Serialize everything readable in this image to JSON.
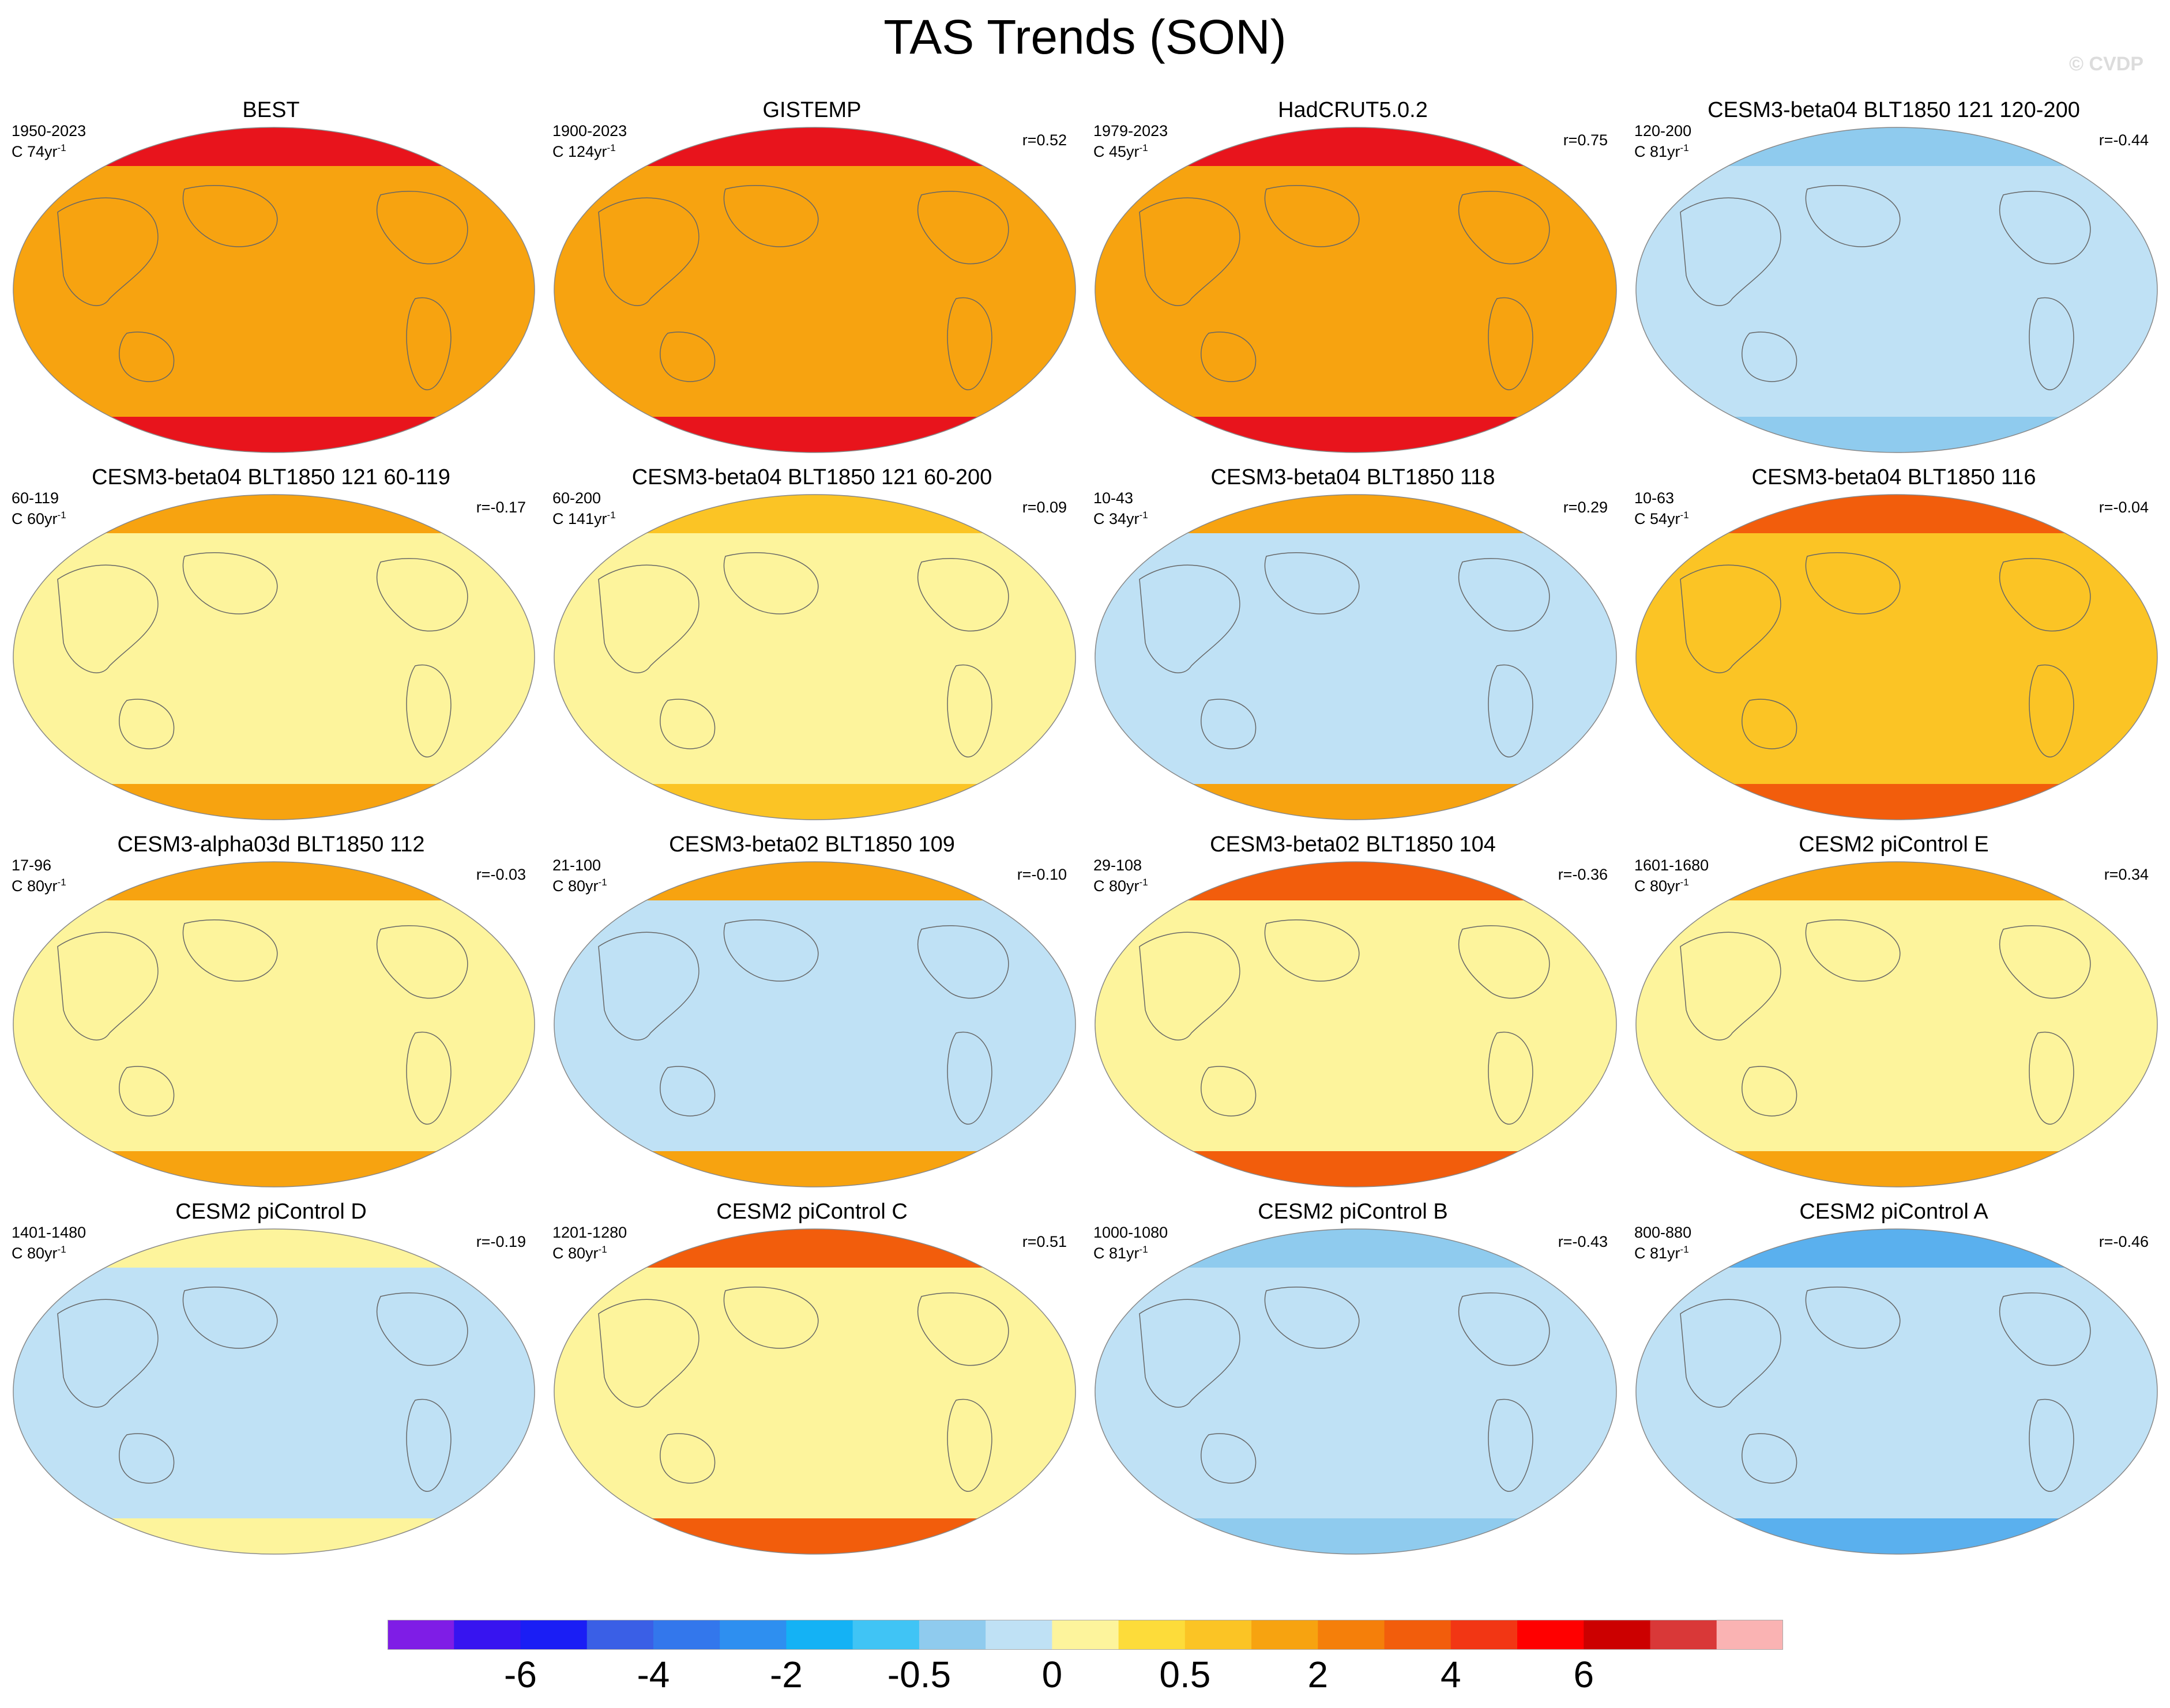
{
  "page": {
    "title": "TAS Trends (SON)",
    "watermark": "© CVDP"
  },
  "chart_data": {
    "type": "heatmap",
    "title": "TAS Trends (SON)",
    "projection": "Robinson global maps (spatial trend fields)",
    "panels": [
      {
        "title": "BEST",
        "period": "1950-2023",
        "length_prefix": "C ",
        "length_value": "74yr",
        "length_exp": "-1",
        "corr": "",
        "tone": "#f7a310",
        "poles": "#e8141c"
      },
      {
        "title": "GISTEMP",
        "period": "1900-2023",
        "length_prefix": "C ",
        "length_value": "124yr",
        "length_exp": "-1",
        "corr": "r=0.52",
        "tone": "#f7a310",
        "poles": "#e8141c"
      },
      {
        "title": "HadCRUT5.0.2",
        "period": "1979-2023",
        "length_prefix": "C ",
        "length_value": "45yr",
        "length_exp": "-1",
        "corr": "r=0.75",
        "tone": "#f7a310",
        "poles": "#e8141c"
      },
      {
        "title": "CESM3-beta04 BLT1850 121 120-200",
        "period": "120-200",
        "length_prefix": "C ",
        "length_value": "81yr",
        "length_exp": "-1",
        "corr": "r=-0.44",
        "tone": "#bfe1f5",
        "poles": "#8fcbee"
      },
      {
        "title": "CESM3-beta04 BLT1850 121 60-119",
        "period": "60-119",
        "length_prefix": "C ",
        "length_value": "60yr",
        "length_exp": "-1",
        "corr": "r=-0.17",
        "tone": "#fdf49c",
        "poles": "#f7a310"
      },
      {
        "title": "CESM3-beta04 BLT1850 121 60-200",
        "period": "60-200",
        "length_prefix": "C ",
        "length_value": "141yr",
        "length_exp": "-1",
        "corr": "r=0.09",
        "tone": "#fdf49c",
        "poles": "#fbc425"
      },
      {
        "title": "CESM3-beta04 BLT1850 118",
        "period": "10-43",
        "length_prefix": "C ",
        "length_value": "34yr",
        "length_exp": "-1",
        "corr": "r=0.29",
        "tone": "#bfe1f5",
        "poles": "#f7a310"
      },
      {
        "title": "CESM3-beta04 BLT1850 116",
        "period": "10-63",
        "length_prefix": "C ",
        "length_value": "54yr",
        "length_exp": "-1",
        "corr": "r=-0.04",
        "tone": "#fbc425",
        "poles": "#f25d0c"
      },
      {
        "title": "CESM3-alpha03d BLT1850 112",
        "period": "17-96",
        "length_prefix": "C ",
        "length_value": "80yr",
        "length_exp": "-1",
        "corr": "r=-0.03",
        "tone": "#fdf49c",
        "poles": "#f7a310"
      },
      {
        "title": "CESM3-beta02 BLT1850 109",
        "period": "21-100",
        "length_prefix": "C ",
        "length_value": "80yr",
        "length_exp": "-1",
        "corr": "r=-0.10",
        "tone": "#bfe1f5",
        "poles": "#f7a310"
      },
      {
        "title": "CESM3-beta02 BLT1850 104",
        "period": "29-108",
        "length_prefix": "C ",
        "length_value": "80yr",
        "length_exp": "-1",
        "corr": "r=-0.36",
        "tone": "#fdf49c",
        "poles": "#f25d0c"
      },
      {
        "title": "CESM2 piControl E",
        "period": "1601-1680",
        "length_prefix": "C ",
        "length_value": "80yr",
        "length_exp": "-1",
        "corr": "r=0.34",
        "tone": "#fdf49c",
        "poles": "#f7a310"
      },
      {
        "title": "CESM2 piControl D",
        "period": "1401-1480",
        "length_prefix": "C ",
        "length_value": "80yr",
        "length_exp": "-1",
        "corr": "r=-0.19",
        "tone": "#bfe1f5",
        "poles": "#fdf49c"
      },
      {
        "title": "CESM2 piControl C",
        "period": "1201-1280",
        "length_prefix": "C ",
        "length_value": "80yr",
        "length_exp": "-1",
        "corr": "r=0.51",
        "tone": "#fdf49c",
        "poles": "#f25d0c"
      },
      {
        "title": "CESM2 piControl B",
        "period": "1000-1080",
        "length_prefix": "C ",
        "length_value": "81yr",
        "length_exp": "-1",
        "corr": "r=-0.43",
        "tone": "#bfe1f5",
        "poles": "#8fcbee"
      },
      {
        "title": "CESM2 piControl A",
        "period": "800-880",
        "length_prefix": "C ",
        "length_value": "81yr",
        "length_exp": "-1",
        "corr": "r=-0.46",
        "tone": "#bfe1f5",
        "poles": "#5ab0ee"
      }
    ],
    "colorbar": {
      "colors": [
        "#7f1de6",
        "#3714f0",
        "#1a1ef5",
        "#3a5fe6",
        "#3377ec",
        "#2e8ff0",
        "#14b2f5",
        "#40c4f5",
        "#8fcbee",
        "#bfe1f5",
        "#fdf49c",
        "#fddc3a",
        "#fbc425",
        "#f7a310",
        "#f57f0a",
        "#f25d0c",
        "#f23614",
        "#ff0000",
        "#cc0000",
        "#d93838",
        "#fab3b3"
      ],
      "labels": [
        "-6",
        "-4",
        "-2",
        "-0.5",
        "0",
        "0.5",
        "2",
        "4",
        "6"
      ],
      "label_after_box": [
        2,
        4,
        6,
        8,
        10,
        12,
        14,
        16,
        18
      ]
    }
  }
}
